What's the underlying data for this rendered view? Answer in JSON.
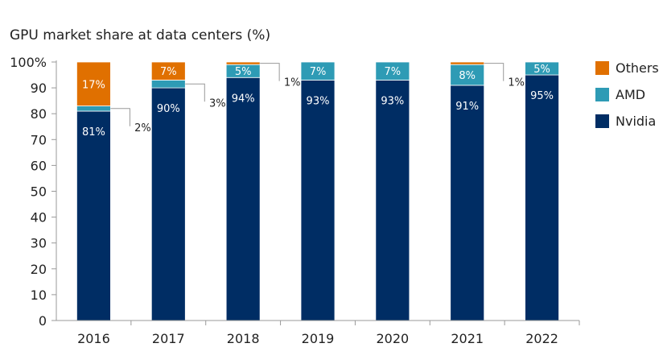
{
  "chart_data": {
    "type": "bar",
    "stacked": true,
    "title": "GPU market share at data centers (%)",
    "xlabel": "",
    "ylabel": "",
    "ylim": [
      0,
      100
    ],
    "yticks": [
      "0",
      "10",
      "20",
      "30",
      "40",
      "50",
      "60",
      "70",
      "80",
      "90",
      "100%"
    ],
    "categories": [
      "2016",
      "2017",
      "2018",
      "2019",
      "2020",
      "2021",
      "2022"
    ],
    "series": [
      {
        "name": "Nvidia",
        "color": "#002d64",
        "values": [
          81,
          90,
          94,
          93,
          93,
          91,
          95
        ],
        "labels": [
          "81%",
          "90%",
          "94%",
          "93%",
          "93%",
          "91%",
          "95%"
        ]
      },
      {
        "name": "AMD",
        "color": "#2e9bb5",
        "values": [
          2,
          3,
          5,
          7,
          7,
          8,
          5
        ],
        "labels": [
          "2%",
          "3%",
          "5%",
          "7%",
          "7%",
          "8%",
          "5%"
        ]
      },
      {
        "name": "Others",
        "color": "#e07000",
        "values": [
          17,
          7,
          1,
          0,
          0,
          1,
          0
        ],
        "labels": [
          "17%",
          "7%",
          "1%",
          "",
          "",
          "1%",
          ""
        ]
      }
    ],
    "legend": {
      "position": "right",
      "order": [
        "Others",
        "AMD",
        "Nvidia"
      ]
    }
  }
}
